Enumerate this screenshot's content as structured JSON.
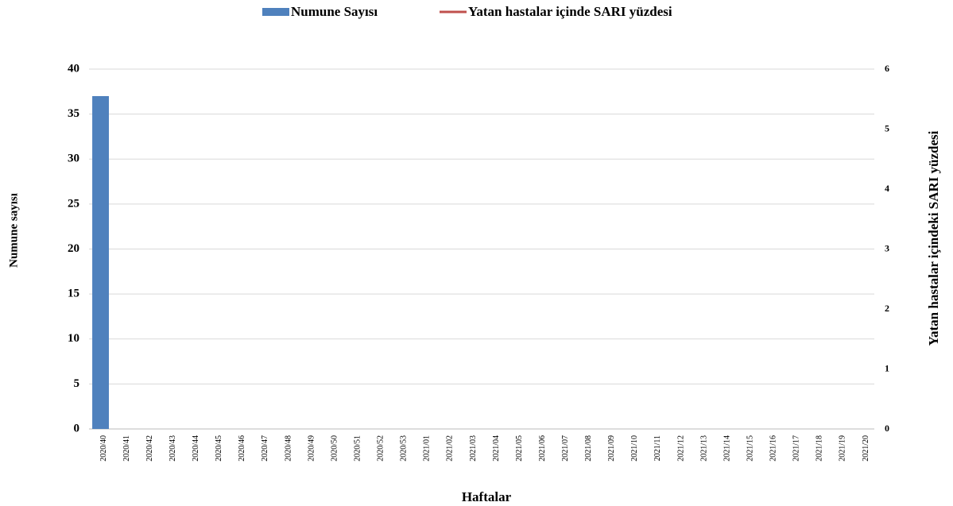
{
  "chart_data": {
    "type": "bar",
    "x_label": "Haftalar",
    "y_label": "Numune sayısı",
    "y2_label": "Yatan hastalar içindeki SARI yüzdesi",
    "categories": [
      "2020/40",
      "2020/41",
      "2020/42",
      "2020/43",
      "2020/44",
      "2020/45",
      "2020/46",
      "2020/47",
      "2020/48",
      "2020/49",
      "2020/50",
      "2020/51",
      "2020/52",
      "2020/53",
      "2021/01",
      "2021/02",
      "2021/03",
      "2021/04",
      "2021/05",
      "2021/06",
      "2021/07",
      "2021/08",
      "2021/09",
      "2021/10",
      "2021/11",
      "2021/12",
      "2021/13",
      "2021/14",
      "2021/15",
      "2021/16",
      "2021/17",
      "2021/18",
      "2021/19",
      "2021/20"
    ],
    "series": [
      {
        "name": "Numune Sayısı",
        "type": "bar",
        "color": "#4f81bd",
        "values": [
          37,
          null,
          null,
          null,
          null,
          null,
          null,
          null,
          null,
          null,
          null,
          null,
          null,
          null,
          null,
          null,
          null,
          null,
          null,
          null,
          null,
          null,
          null,
          null,
          null,
          null,
          null,
          null,
          null,
          null,
          null,
          null,
          null,
          null
        ]
      },
      {
        "name": "Yatan hastalar içinde SARI yüzdesi",
        "type": "line",
        "axis": "y2",
        "color": "#c0504d",
        "values": [
          null,
          null,
          null,
          null,
          null,
          null,
          null,
          null,
          null,
          null,
          null,
          null,
          null,
          null,
          null,
          null,
          null,
          null,
          null,
          null,
          null,
          null,
          null,
          null,
          null,
          null,
          null,
          null,
          null,
          null,
          null,
          null,
          null,
          null
        ]
      }
    ],
    "ylim": [
      0,
      40
    ],
    "yticks": [
      0,
      5,
      10,
      15,
      20,
      25,
      30,
      35,
      40
    ],
    "y2lim": [
      0,
      6
    ],
    "y2ticks": [
      0,
      1,
      2,
      3,
      4,
      5,
      6
    ],
    "grid": true
  }
}
